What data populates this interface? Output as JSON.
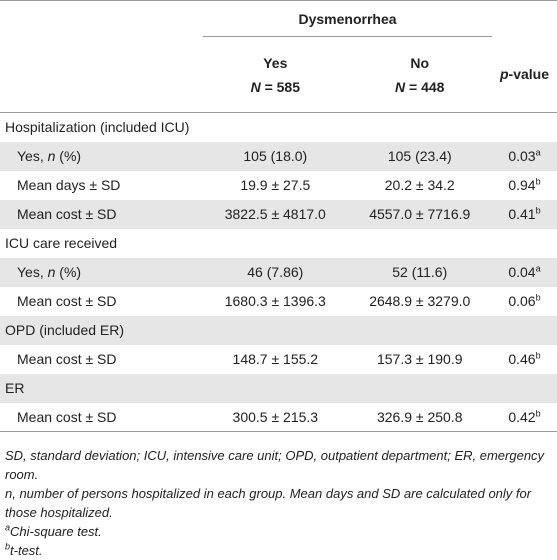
{
  "header": {
    "group_label": "Dysmenorrhea",
    "col_yes": "Yes",
    "col_yes_n_prefix": "N",
    "col_yes_n_value": " = 585",
    "col_no": "No",
    "col_no_n_prefix": "N",
    "col_no_n_value": " = 448",
    "col_p_italic": "p",
    "col_p_rest": "-value"
  },
  "rows": [
    {
      "type": "section",
      "label": "Hospitalization (included ICU)"
    },
    {
      "type": "data",
      "label_pre": "Yes, ",
      "label_it": "n",
      "label_post": " (%)",
      "yes": "105 (18.0)",
      "no": "105 (23.4)",
      "p": "0.03",
      "sup": "a"
    },
    {
      "type": "data",
      "label_pre": "Mean days ± SD",
      "label_it": "",
      "label_post": "",
      "yes": "19.9 ± 27.5",
      "no": "20.2 ± 34.2",
      "p": "0.94",
      "sup": "b"
    },
    {
      "type": "data",
      "label_pre": "Mean cost ± SD",
      "label_it": "",
      "label_post": "",
      "yes": "3822.5 ± 4817.0",
      "no": "4557.0 ± 7716.9",
      "p": "0.41",
      "sup": "b"
    },
    {
      "type": "section",
      "label": "ICU care received"
    },
    {
      "type": "data",
      "label_pre": "Yes, ",
      "label_it": "n",
      "label_post": " (%)",
      "yes": "46 (7.86)",
      "no": "52 (11.6)",
      "p": "0.04",
      "sup": "a"
    },
    {
      "type": "data",
      "label_pre": "Mean cost ± SD",
      "label_it": "",
      "label_post": "",
      "yes": "1680.3 ± 1396.3",
      "no": "2648.9 ± 3279.0",
      "p": "0.06",
      "sup": "b"
    },
    {
      "type": "section",
      "label": "OPD (included ER)"
    },
    {
      "type": "data",
      "label_pre": "Mean cost ± SD",
      "label_it": "",
      "label_post": "",
      "yes": "148.7 ± 155.2",
      "no": "157.3 ± 190.9",
      "p": "0.46",
      "sup": "b"
    },
    {
      "type": "section",
      "label": "ER"
    },
    {
      "type": "data",
      "label_pre": "Mean cost ± SD",
      "label_it": "",
      "label_post": "",
      "yes": "300.5 ± 215.3",
      "no": "326.9 ± 250.8",
      "p": "0.42",
      "sup": "b"
    }
  ],
  "footnotes": {
    "abbrev": "SD, standard deviation; ICU, intensive care unit; OPD, outpatient department; ER, emergency room.",
    "n_note": "n, number of persons hospitalized in each group. Mean days and SD are calculated only for those hospitalized.",
    "a_mark": "a",
    "a_text": "Chi-square test.",
    "b_mark": "b",
    "b_text": "t-test."
  }
}
